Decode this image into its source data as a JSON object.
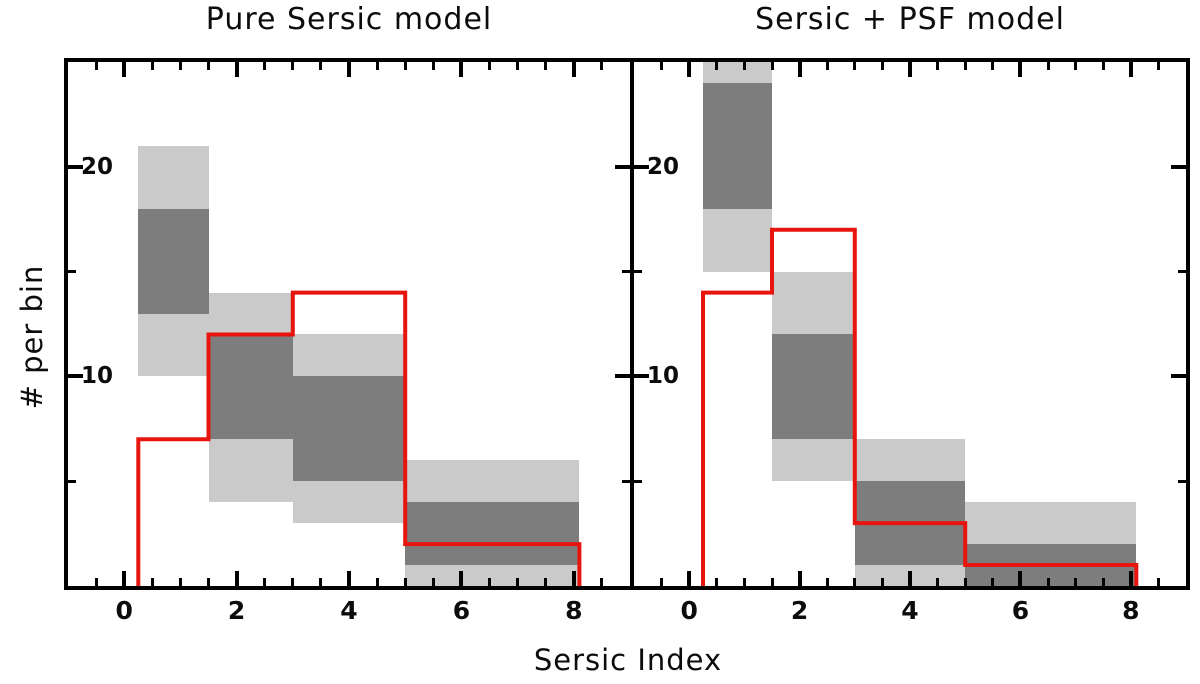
{
  "figure": {
    "xlabel": "Sersic Index",
    "ylabel": "# per bin"
  },
  "colors": {
    "band_outer": "#cacaca",
    "band_inner": "#7d7d7d",
    "red_line": "#e8150f",
    "axis": "#000000"
  },
  "chart_data": [
    {
      "type": "area",
      "subtype": "step-histogram-with-confidence-bands",
      "title": "Pure Sersic model",
      "xlabel": "Sersic Index",
      "ylabel": "# per bin",
      "xlim": [
        -1,
        9
      ],
      "ylim": [
        0,
        25
      ],
      "x_major_ticks": [
        0,
        2,
        4,
        6,
        8
      ],
      "x_minor_step": 0.5,
      "y_major_ticks": [
        10,
        20
      ],
      "y_minor_step": 5,
      "grid": false,
      "legend": false,
      "bin_edges": [
        0.25,
        1.5,
        3,
        5,
        8.1
      ],
      "series": [
        {
          "name": "outer-gray-band",
          "ranges": [
            [
              10,
              21
            ],
            [
              4,
              14
            ],
            [
              3,
              12
            ],
            [
              0,
              6
            ]
          ]
        },
        {
          "name": "inner-gray-band",
          "ranges": [
            [
              13,
              18
            ],
            [
              7,
              12
            ],
            [
              5,
              10
            ],
            [
              1,
              4
            ]
          ]
        },
        {
          "name": "red-step-histogram",
          "values": [
            7,
            12,
            14,
            2
          ]
        }
      ]
    },
    {
      "type": "area",
      "subtype": "step-histogram-with-confidence-bands",
      "title": "Sersic + PSF model",
      "xlabel": "Sersic Index",
      "ylabel": "# per bin",
      "xlim": [
        -1,
        9
      ],
      "ylim": [
        0,
        25
      ],
      "x_major_ticks": [
        0,
        2,
        4,
        6,
        8
      ],
      "x_minor_step": 0.5,
      "y_major_ticks": [
        10,
        20
      ],
      "y_minor_step": 5,
      "grid": false,
      "legend": false,
      "bin_edges": [
        0.25,
        1.5,
        3,
        5,
        8.1
      ],
      "series": [
        {
          "name": "outer-gray-band",
          "ranges": [
            [
              15,
              25
            ],
            [
              5,
              15
            ],
            [
              0,
              7
            ],
            [
              0,
              4
            ]
          ]
        },
        {
          "name": "inner-gray-band",
          "ranges": [
            [
              18,
              24
            ],
            [
              7,
              12
            ],
            [
              1,
              5
            ],
            [
              0,
              2
            ]
          ]
        },
        {
          "name": "red-step-histogram",
          "values": [
            14,
            17,
            3,
            1
          ]
        }
      ]
    }
  ]
}
